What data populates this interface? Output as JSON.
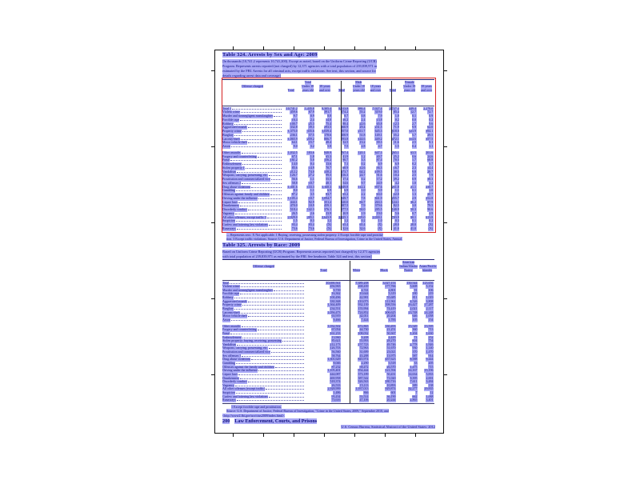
{
  "page_footer": {
    "page_number": "200",
    "section_title": "Law Enforcement, Courts, and Prisons",
    "source_credit": "U.S. Census Bureau, Statistical Abstract of the United States: 2012"
  },
  "colors": {
    "highlight": "#6464f0",
    "text": "#10107e",
    "annotation_box": "#d42222"
  },
  "table324": {
    "title": "Table 324. Arrests by Sex and Age: 2009",
    "headnote_lines": [
      "[In thousands (10,741.2 represents 10,741,200). Except as noted, based on the Uniform Crime Reporting (UCR)",
      "Program. Represents arrests reported (not charged) by 12,371 agencies with a total population of 239,839,971 as",
      "estimated by the FBI. Arrests for all criminal acts, except traffic violations. See text, this section, and source for",
      "details regarding arrest data and coverage]"
    ],
    "stub_head": "Offense charged",
    "group_heads": [
      "Total",
      "Male",
      "Female"
    ],
    "sub_head_lines": [
      [
        "",
        "Total"
      ],
      [
        "Under 18",
        "years old"
      ],
      [
        "18 years",
        "and over"
      ]
    ],
    "rows": [
      {
        "label": "Total 1",
        "values": [
          "10,741.2",
          "1,435.8",
          "9,305.4",
          "8,013.8",
          "986.4",
          "7,027.4",
          "2,727.4",
          "449.4",
          "2,278.0"
        ]
      },
      {
        "label": "Violent crime",
        "values": [
          "459.6",
          "67.9",
          "391.7",
          "374.2",
          "55.2",
          "319.0",
          "85.4",
          "12.7",
          "72.7"
        ]
      },
      {
        "label": "Murder and nonnegligent manslaughter",
        "values": [
          "9.7",
          "0.9",
          "8.8",
          "8.7",
          "0.8",
          "7.9",
          "1.0",
          "0.1",
          "0.9"
        ]
      },
      {
        "label": "Forcible rape",
        "values": [
          "16.4",
          "2.4",
          "14.0",
          "16.2",
          "2.4",
          "13.8",
          "0.2",
          "0.0",
          "0.2"
        ]
      },
      {
        "label": "Robbery",
        "values": [
          "100.7",
          "25.3",
          "75.4",
          "88.4",
          "22.6",
          "65.8",
          "12.3",
          "2.7",
          "9.6"
        ]
      },
      {
        "label": "Aggravated assault",
        "values": [
          "332.8",
          "39.3",
          "293.5",
          "260.9",
          "29.4",
          "231.5",
          "71.9",
          "9.9",
          "62.0"
        ]
      },
      {
        "label": "Property crime",
        "values": [
          "1,375.0",
          "335.6",
          "1,039.4",
          "857.0",
          "211.7",
          "645.3",
          "518.0",
          "123.9",
          "394.1"
        ]
      },
      {
        "label": "Burglary",
        "values": [
          "236.1",
          "57.5",
          "178.6",
          "200.9",
          "51.8",
          "149.1",
          "35.2",
          "5.7",
          "29.5"
        ]
      },
      {
        "label": "Larceny-theft",
        "values": [
          "1,065.9",
          "259.2",
          "806.7",
          "593.8",
          "144.6",
          "449.2",
          "472.1",
          "114.6",
          "357.5"
        ]
      },
      {
        "label": "Motor vehicle theft",
        "values": [
          "64.1",
          "15.7",
          "48.4",
          "52.5",
          "13.2",
          "39.3",
          "11.6",
          "2.5",
          "9.1"
        ]
      },
      {
        "label": "Arson",
        "values": [
          "9.0",
          "3.2",
          "5.8",
          "7.5",
          "2.8",
          "4.7",
          "1.5",
          "0.4",
          "1.1"
        ]
      },
      {
        "label": "Other assaults",
        "group_break": true,
        "values": [
          "1,032.5",
          "183.6",
          "848.9",
          "767.4",
          "120.1",
          "647.3",
          "265.1",
          "63.5",
          "201.6"
        ]
      },
      {
        "label": "Forgery and counterfeiting",
        "values": [
          "67.1",
          "1.8",
          "65.3",
          "41.9",
          "1.2",
          "40.7",
          "25.2",
          "0.6",
          "24.6"
        ]
      },
      {
        "label": "Fraud",
        "values": [
          "161.2",
          "5.0",
          "156.2",
          "90.7",
          "3.3",
          "87.4",
          "70.5",
          "1.7",
          "68.8"
        ]
      },
      {
        "label": "Embezzlement",
        "values": [
          "14.0",
          "0.4",
          "13.6",
          "7.1",
          "0.2",
          "6.9",
          "6.9",
          "0.2",
          "6.7"
        ]
      },
      {
        "label": "Stolen property 1",
        "values": [
          "85.6",
          "14.9",
          "70.7",
          "68.9",
          "12.6",
          "56.3",
          "16.7",
          "2.3",
          "14.4"
        ]
      },
      {
        "label": "Vandalism",
        "values": [
          "212.2",
          "74.0",
          "138.2",
          "173.7",
          "64.2",
          "109.5",
          "38.5",
          "9.8",
          "28.7"
        ]
      },
      {
        "label": "Weapons; carrying, possessing, etc.",
        "values": [
          "126.7",
          "27.2",
          "99.5",
          "116.3",
          "24.7",
          "91.6",
          "10.4",
          "2.5",
          "7.9"
        ]
      },
      {
        "label": "Prostitution and commercialized vice",
        "values": [
          "56.6",
          "1.1",
          "55.5",
          "17.4",
          "0.2",
          "17.2",
          "39.2",
          "0.9",
          "38.3"
        ]
      },
      {
        "label": "Sex offenses 2",
        "values": [
          "58.8",
          "10.7",
          "48.1",
          "54.6",
          "9.7",
          "44.9",
          "4.2",
          "1.0",
          "3.2"
        ]
      },
      {
        "label": "Drug abuse violations",
        "values": [
          "1,301.6",
          "133.3",
          "1,168.3",
          "1,049.8",
          "112.2",
          "937.6",
          "251.8",
          "21.1",
          "230.7"
        ]
      },
      {
        "label": "Gambling",
        "values": [
          "8.0",
          "1.1",
          "6.9",
          "6.9",
          "1.0",
          "5.9",
          "1.1",
          "0.1",
          "1.0"
        ]
      },
      {
        "label": "Offenses against family and children",
        "values": [
          "87.2",
          "3.5",
          "83.7",
          "65.2",
          "2.2",
          "63.0",
          "22.0",
          "1.3",
          "20.7"
        ]
      },
      {
        "label": "Driving under the influence",
        "values": [
          "1,105.4",
          "10.7",
          "1,094.7",
          "849.7",
          "7.8",
          "841.9",
          "255.7",
          "2.9",
          "252.8"
        ]
      },
      {
        "label": "Liquor laws",
        "values": [
          "444.1",
          "92.9",
          "351.2",
          "320.0",
          "56.7",
          "263.3",
          "124.1",
          "36.2",
          "87.9"
        ]
      },
      {
        "label": "Drunkenness",
        "values": [
          "470.0",
          "10.9",
          "459.1",
          "387.5",
          "7.9",
          "379.6",
          "82.5",
          "3.0",
          "79.5"
        ]
      },
      {
        "label": "Disorderly conduct",
        "values": [
          "518.4",
          "142.3",
          "376.1",
          "377.5",
          "92.0",
          "285.5",
          "140.9",
          "50.3",
          "90.6"
        ]
      },
      {
        "label": "Vagrancy",
        "values": [
          "26.5",
          "2.6",
          "23.9",
          "20.9",
          "1.9",
          "19.0",
          "5.6",
          "0.7",
          "4.9"
        ]
      },
      {
        "label": "All other offenses, except traffic 3",
        "values": [
          "2,929.0",
          "285.1",
          "2,643.9",
          "2,225.1",
          "195.0",
          "2,030.1",
          "703.9",
          "90.1",
          "613.8"
        ]
      },
      {
        "label": "Suspicion",
        "values": [
          "1.5",
          "0.3",
          "1.2",
          "1.2",
          "0.2",
          "1.0",
          "0.3",
          "0.1",
          "0.2"
        ]
      },
      {
        "label": "Curfew and loitering law violations",
        "values": [
          "93.4",
          "93.4",
          "(X)",
          "65.4",
          "65.4",
          "(X)",
          "28.0",
          "28.0",
          "(X)"
        ]
      },
      {
        "label": "Runaways",
        "values": [
          "73.6",
          "73.6",
          "(X)",
          "32.6",
          "32.6",
          "(X)",
          "41.0",
          "41.0",
          "(X)"
        ]
      }
    ],
    "footnote_lines": [
      "— Represents zero. X Not applicable. 1 Buying, receiving, possessing stolen property. 2 Except forcible rape and prostitu-",
      "tion. 3 Except traffic violations. Source: U.S. Department of Justice, Federal Bureau of Investigation, Crime in the United States, Annual."
    ]
  },
  "table325": {
    "title": "Table 325. Arrests by Race: 2009",
    "headnote_lines": [
      "Based on Uniform Crime Reporting (UCR) Program. Represents arrests reported (not charged) by 12,371 agencies",
      "with total population of 239,839,971 as estimated by the FBI. See headnote, Table 324 and text, this section]"
    ],
    "stub_head": "Offense charged",
    "col_head_lines": [
      [
        "",
        "",
        "Total"
      ],
      [
        "",
        "",
        "White"
      ],
      [
        "",
        "",
        "Black"
      ],
      [
        "American",
        "Indian/Alaska",
        "Native"
      ],
      [
        "",
        "Asian/Pacific",
        "Islander"
      ]
    ],
    "rows": [
      {
        "label": "Total",
        "values": [
          "10,690,561",
          "7,389,208",
          "3,027,153",
          "150,544",
          "123,656"
        ]
      },
      {
        "label": "Violent crime",
        "values": [
          "456,965",
          "268,439",
          "177,766",
          "5,608",
          "5,152"
        ]
      },
      {
        "label": "Murder and nonnegligent manslaughter",
        "values": [
          "9,739",
          "4,741",
          "4,801",
          "91",
          "106"
        ]
      },
      {
        "label": "Forcible rape",
        "values": [
          "16,362",
          "10,644",
          "5,319",
          "180",
          "219"
        ]
      },
      {
        "label": "Robbery",
        "values": [
          "100,496",
          "42,981",
          "55,685",
          "811",
          "1,019"
        ]
      },
      {
        "label": "Aggravated assault",
        "values": [
          "330,368",
          "210,073",
          "111,961",
          "4,526",
          "3,808"
        ]
      },
      {
        "label": "Property crime",
        "values": [
          "1,364,409",
          "932,139",
          "398,556",
          "16,427",
          "17,287"
        ]
      },
      {
        "label": "Burglary",
        "values": [
          "234,551",
          "155,994",
          "74,419",
          "2,021",
          "2,117"
        ]
      },
      {
        "label": "Larceny-theft",
        "values": [
          "1,056,473",
          "724,852",
          "306,625",
          "13,748",
          "14,248"
        ]
      },
      {
        "label": "Motor vehicle theft",
        "values": [
          "63,919",
          "42,011",
          "20,204",
          "646",
          "1,058"
        ]
      },
      {
        "label": "Arson",
        "values": [
          "9,466",
          "7,424",
          "1,783",
          "105",
          "154"
        ]
      },
      {
        "label": "Other assaults",
        "group_break": true,
        "values": [
          "1,032,502",
          "672,865",
          "330,493",
          "15,549",
          "13,595"
        ]
      },
      {
        "label": "Forgery and counterfeiting",
        "values": [
          "67,054",
          "44,730",
          "21,251",
          "360",
          "713"
        ]
      },
      {
        "label": "Fraud",
        "values": [
          "161,233",
          "108,032",
          "50,367",
          "1,204",
          "1,630"
        ]
      },
      {
        "label": "Embezzlement",
        "values": [
          "13,960",
          "9,208",
          "4,429",
          "71",
          "252"
        ]
      },
      {
        "label": "Stolen property; buying, receiving, possessing",
        "values": [
          "85,621",
          "55,993",
          "28,270",
          "604",
          "754"
        ]
      },
      {
        "label": "Vandalism",
        "values": [
          "212,173",
          "157,723",
          "49,746",
          "2,778",
          "1,926"
        ]
      },
      {
        "label": "Weapons; carrying, possessing, etc.",
        "values": [
          "126,703",
          "72,963",
          "51,670",
          "930",
          "1,140"
        ]
      },
      {
        "label": "Prostitution and commercialized vice",
        "values": [
          "56,560",
          "31,699",
          "23,021",
          "370",
          "1,470"
        ]
      },
      {
        "label": "Sex offenses 1",
        "values": [
          "58,764",
          "43,288",
          "13,975",
          "587",
          "914"
        ]
      },
      {
        "label": "Drug abuse violations",
        "values": [
          "1,301,629",
          "845,974",
          "437,623",
          "8,588",
          "9,444"
        ]
      },
      {
        "label": "Gambling",
        "values": [
          "8,046",
          "2,290",
          "5,518",
          "33",
          "205"
        ]
      },
      {
        "label": "Offenses against the family and children",
        "values": [
          "87,232",
          "58,472",
          "26,570",
          "1,475",
          "715"
        ]
      },
      {
        "label": "Driving under the influence",
        "values": [
          "1,105,401",
          "954,444",
          "121,594",
          "14,167",
          "15,196"
        ]
      },
      {
        "label": "Liquor laws",
        "values": [
          "444,087",
          "373,189",
          "50,431",
          "14,634",
          "5,833"
        ]
      },
      {
        "label": "Drunkenness",
        "values": [
          "469,958",
          "387,542",
          "71,020",
          "9,395",
          "2,001"
        ]
      },
      {
        "label": "Disorderly conduct",
        "values": [
          "518,374",
          "326,563",
          "180,716",
          "7,611",
          "3,484"
        ]
      },
      {
        "label": "Vagrancy",
        "values": [
          "26,533",
          "15,113",
          "10,893",
          "389",
          "138"
        ]
      },
      {
        "label": "All other offenses (except traffic)",
        "values": [
          "2,928,999",
          "1,937,013",
          "929,874",
          "32,277",
          "29,835"
        ]
      },
      {
        "label": "Suspicion",
        "values": [
          "1,486",
          "866",
          "601",
          "7",
          "12"
        ]
      },
      {
        "label": "Curfew and loitering law violations",
        "values": [
          "93,434",
          "55,514",
          "36,190",
          "662",
          "1,068"
        ]
      },
      {
        "label": "Runaways",
        "values": [
          "73,616",
          "47,106",
          "20,244",
          "2,865",
          "3,401"
        ]
      }
    ],
    "footnote_lines": [
      "1 Except forcible rape and prostitution.",
      "Source: U.S. Department of Justice, Federal Bureau of Investigation, \"Crime in the United States, 2009,\" September 2010, and",
      "<http://www2.fbi.gov/ucr/cius2009/index.html>."
    ]
  }
}
